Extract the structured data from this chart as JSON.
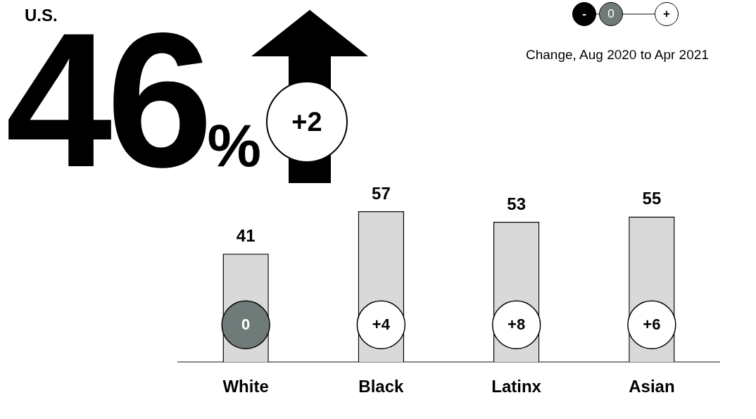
{
  "chart_data": {
    "type": "bar",
    "title": "U.S.",
    "categories": [
      "White",
      "Black",
      "Latinx",
      "Asian"
    ],
    "values": [
      41,
      57,
      53,
      55
    ],
    "color": "#d9d9d9",
    "data_labels": true,
    "grid": false,
    "legend": false,
    "annotations": [
      "46%",
      "+2",
      "-",
      "0",
      "+",
      "Change, Aug 2020 to Apr 2021",
      "0",
      "+4",
      "+8",
      "+6"
    ]
  }
}
